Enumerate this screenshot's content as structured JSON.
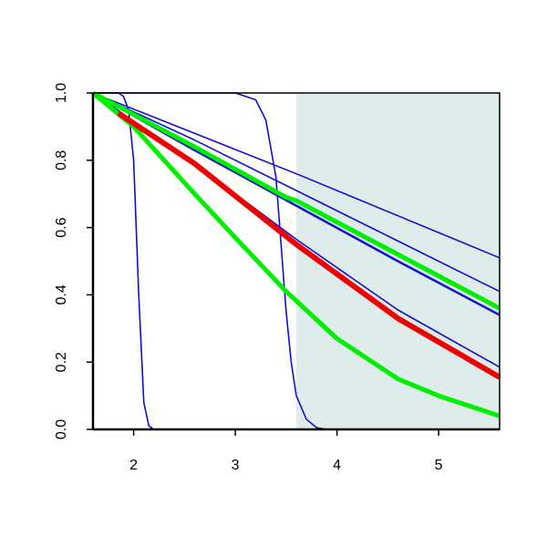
{
  "chart_data": {
    "type": "line",
    "xlim": [
      1.6,
      5.6
    ],
    "ylim": [
      0,
      1
    ],
    "xticks": [
      2,
      3,
      4,
      5
    ],
    "yticks": [
      {
        "value": 0,
        "label": "0.0"
      },
      0.2,
      0.4,
      0.6,
      0.8,
      {
        "value": 1,
        "label": "1.0"
      }
    ],
    "shade": {
      "x": [
        3.6,
        5.6
      ],
      "color": "#deecec"
    },
    "series": [
      {
        "color": "#1010d0",
        "width": 1.6,
        "x": [
          1.6,
          1.85,
          1.9,
          1.95,
          2.0,
          2.05,
          2.1,
          2.15,
          2.2,
          5.6
        ],
        "values": [
          1,
          1,
          0.99,
          0.95,
          0.8,
          0.4,
          0.08,
          0.01,
          0,
          0
        ]
      },
      {
        "color": "#1010d0",
        "width": 1.6,
        "x": [
          1.6,
          3.0,
          3.2,
          3.3,
          3.4,
          3.45,
          3.5,
          3.55,
          3.6,
          3.7,
          3.8,
          3.9,
          5.6
        ],
        "values": [
          1,
          1,
          0.98,
          0.92,
          0.75,
          0.55,
          0.35,
          0.2,
          0.1,
          0.03,
          0.005,
          0,
          0
        ]
      },
      {
        "color": "#1010d0",
        "width": 1.6,
        "x": [
          1.6,
          2.6,
          3.6,
          4.6,
          5.6
        ],
        "values": [
          1,
          0.88,
          0.76,
          0.635,
          0.51
        ]
      },
      {
        "color": "#1010d0",
        "width": 1.6,
        "x": [
          1.6,
          2.6,
          3.6,
          4.6,
          5.6
        ],
        "values": [
          1,
          0.86,
          0.71,
          0.56,
          0.41
        ]
      },
      {
        "color": "#1010d0",
        "width": 2.5,
        "x": [
          1.6,
          2.6,
          3.6,
          4.6,
          5.6
        ],
        "values": [
          1,
          0.83,
          0.665,
          0.5,
          0.34
        ]
      },
      {
        "color": "#1010d0",
        "width": 1.6,
        "x": [
          1.6,
          2.6,
          3.6,
          4.6,
          5.6
        ],
        "values": [
          1,
          0.79,
          0.565,
          0.355,
          0.185
        ]
      },
      {
        "color": "#00ee00",
        "width": 5,
        "x": [
          1.6,
          2.6,
          3.5,
          3.6,
          4.6,
          5.6
        ],
        "values": [
          1,
          0.84,
          0.69,
          0.68,
          0.52,
          0.36
        ]
      },
      {
        "color": "#00ee00",
        "width": 5,
        "x": [
          1.6,
          2.0,
          2.6,
          3.0,
          3.5,
          4.0,
          4.6,
          5.0,
          5.6
        ],
        "values": [
          1,
          0.9,
          0.7,
          0.57,
          0.41,
          0.27,
          0.15,
          0.1,
          0.04
        ]
      },
      {
        "color": "#ee0000",
        "width": 6,
        "x": [
          1.85,
          2.6,
          3.6,
          4.6,
          5.6
        ],
        "values": [
          0.94,
          0.79,
          0.55,
          0.33,
          0.155
        ]
      }
    ]
  }
}
